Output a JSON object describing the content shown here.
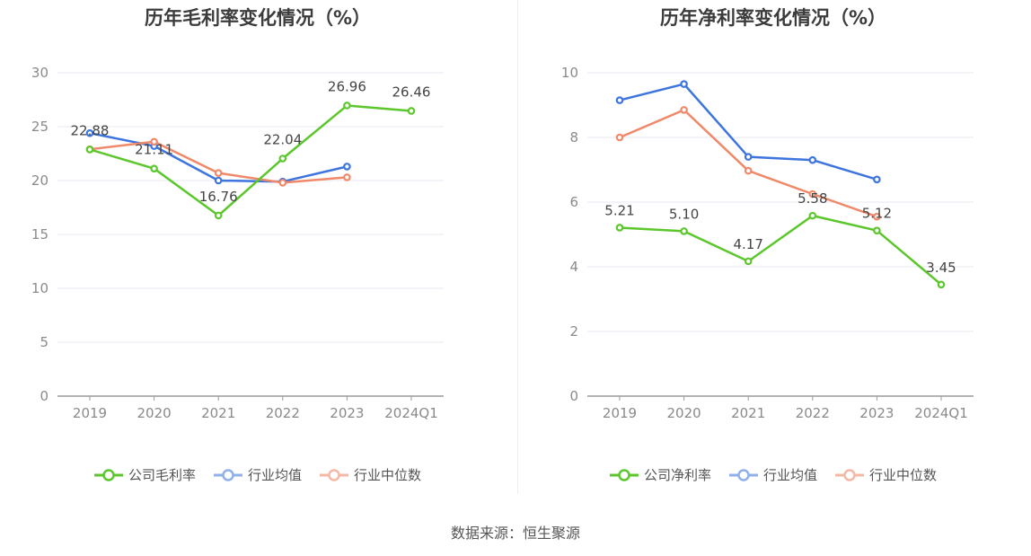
{
  "source": "数据来源：恒生聚源",
  "charts": [
    {
      "title": "历年毛利率变化情况（%）",
      "legend": [
        "公司毛利率",
        "行业均值",
        "行业中位数"
      ],
      "chart_data": {
        "type": "line",
        "title": "历年毛利率变化情况（%）",
        "categories": [
          "2019",
          "2020",
          "2021",
          "2022",
          "2023",
          "2024Q1"
        ],
        "ylim": [
          0,
          30
        ],
        "yticks": [
          0,
          5,
          10,
          15,
          20,
          25,
          30
        ],
        "grid": true,
        "legend_position": "bottom",
        "series": [
          {
            "name": "公司毛利率",
            "color": "#5cc72c",
            "values": [
              22.88,
              21.11,
              16.76,
              22.04,
              26.96,
              26.46
            ],
            "labels": [
              "22.88",
              "21.11",
              "16.76",
              "22.04",
              "26.96",
              "26.46"
            ]
          },
          {
            "name": "行业均值",
            "color": "#3d74de",
            "values": [
              24.4,
              23.2,
              20.0,
              19.9,
              21.3,
              null
            ]
          },
          {
            "name": "行业中位数",
            "color": "#f0886a",
            "values": [
              22.9,
              23.6,
              20.7,
              19.8,
              20.3,
              null
            ]
          }
        ]
      }
    },
    {
      "title": "历年净利率变化情况（%）",
      "legend": [
        "公司净利率",
        "行业均值",
        "行业中位数"
      ],
      "chart_data": {
        "type": "line",
        "title": "历年净利率变化情况（%）",
        "categories": [
          "2019",
          "2020",
          "2021",
          "2022",
          "2023",
          "2024Q1"
        ],
        "ylim": [
          0,
          10
        ],
        "yticks": [
          0,
          2,
          4,
          6,
          8,
          10
        ],
        "grid": true,
        "legend_position": "bottom",
        "series": [
          {
            "name": "公司净利率",
            "color": "#5cc72c",
            "values": [
              5.21,
              5.1,
              4.17,
              5.58,
              5.12,
              3.45
            ],
            "labels": [
              "5.21",
              "5.10",
              "4.17",
              "5.58",
              "5.12",
              "3.45"
            ]
          },
          {
            "name": "行业均值",
            "color": "#3d74de",
            "values": [
              9.15,
              9.65,
              7.4,
              7.3,
              6.7,
              null
            ]
          },
          {
            "name": "行业中位数",
            "color": "#f0886a",
            "values": [
              8.0,
              8.85,
              6.97,
              6.25,
              5.55,
              null
            ]
          }
        ]
      }
    }
  ]
}
